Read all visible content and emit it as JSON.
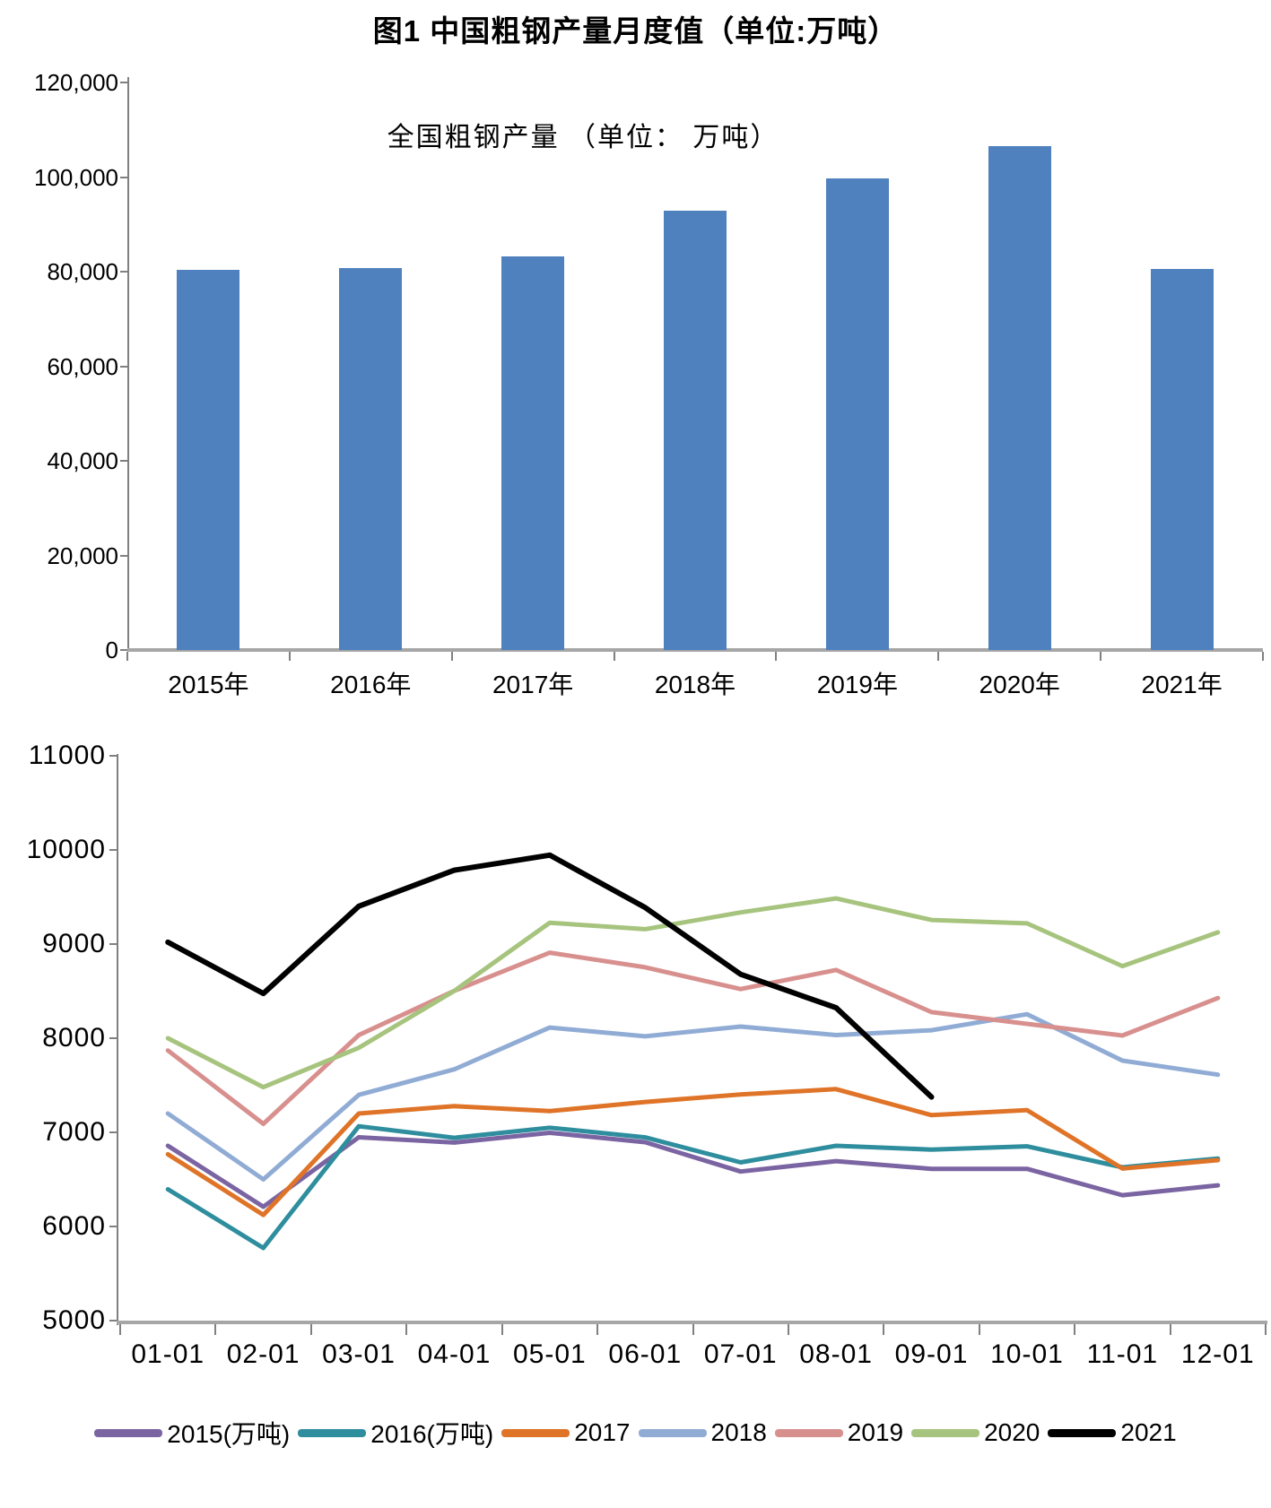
{
  "title": "图1 中国粗钢产量月度值（单位:万吨）",
  "chart_data": [
    {
      "type": "bar",
      "inner_title": "全国粗钢产量 （单位： 万吨）",
      "categories": [
        "2015年",
        "2016年",
        "2017年",
        "2018年",
        "2019年",
        "2020年",
        "2021年"
      ],
      "values": [
        80383,
        80761,
        83173,
        92800,
        99634,
        106477,
        80589
      ],
      "ylim": [
        0,
        120000
      ],
      "ytick_step": 20000,
      "ytick_labels": [
        "120,000",
        "100,000",
        "80,000",
        "60,000",
        "40,000",
        "20,000",
        "0"
      ],
      "bar_color": "#4e81bd",
      "axis_color": "#808080",
      "baseline_color": "#a6a6a6",
      "grid": "off",
      "legend": "none"
    },
    {
      "type": "line",
      "x": [
        "01-01",
        "02-01",
        "03-01",
        "04-01",
        "05-01",
        "06-01",
        "07-01",
        "08-01",
        "09-01",
        "10-01",
        "11-01",
        "12-01"
      ],
      "ylim": [
        5000,
        11000
      ],
      "ytick_step": 1000,
      "ytick_labels": [
        "11000",
        "10000",
        "9000",
        "8000",
        "7000",
        "6000",
        "5000"
      ],
      "grid": "off",
      "legend_position": "bottom",
      "axis_color": "#808080",
      "baseline_color": "#a6a6a6",
      "series": [
        {
          "name": "2015(万吨)",
          "color": "#7b64a2",
          "values": [
            6857,
            6210,
            6948,
            6891,
            6995,
            6895,
            6584,
            6694,
            6612,
            6612,
            6332,
            6437
          ]
        },
        {
          "name": "2016(万吨)",
          "color": "#2f8e9e",
          "values": [
            6395,
            5771,
            7065,
            6942,
            7050,
            6947,
            6681,
            6857,
            6817,
            6851,
            6629,
            6722
          ]
        },
        {
          "name": "2017",
          "color": "#df7428",
          "values": [
            6767,
            6123,
            7200,
            7278,
            7226,
            7323,
            7402,
            7459,
            7183,
            7236,
            6615,
            6705
          ]
        },
        {
          "name": "2018",
          "color": "#90acd5",
          "values": [
            7200,
            6500,
            7398,
            7670,
            8113,
            8020,
            8124,
            8033,
            8085,
            8255,
            7762,
            7612
          ]
        },
        {
          "name": "2019",
          "color": "#d8908e",
          "values": [
            7870,
            7090,
            8033,
            8503,
            8909,
            8753,
            8522,
            8725,
            8277,
            8152,
            8029,
            8427
          ]
        },
        {
          "name": "2020",
          "color": "#a7c47e",
          "values": [
            8000,
            7480,
            7898,
            8503,
            9227,
            9158,
            9336,
            9485,
            9256,
            9220,
            8766,
            9125
          ]
        },
        {
          "name": "2021",
          "color": "#000000",
          "values": [
            9020,
            8475,
            9402,
            9785,
            9945,
            9388,
            8679,
            8324,
            7375,
            null,
            null,
            null
          ]
        }
      ]
    }
  ]
}
